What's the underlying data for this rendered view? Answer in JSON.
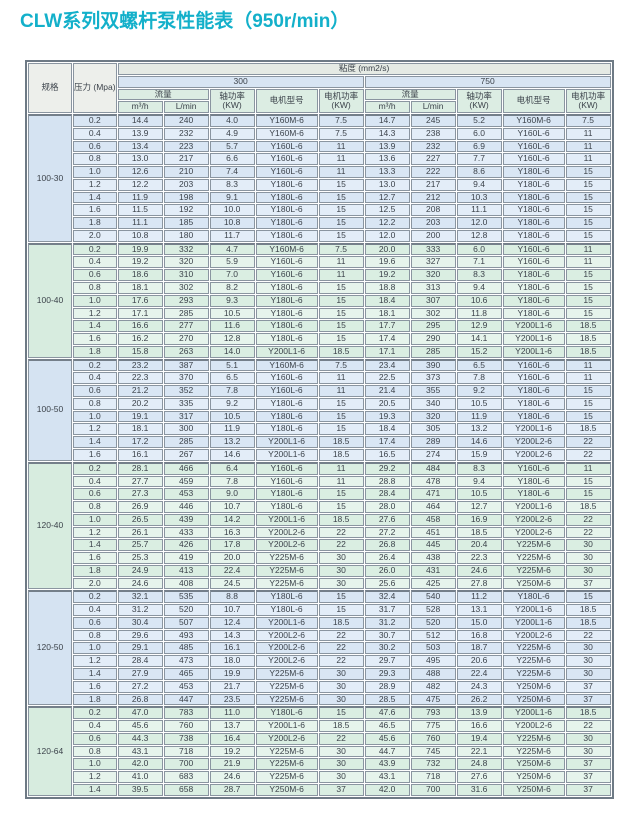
{
  "page_title": "CLW系列双螺杆泵性能表（950r/min）",
  "accent_color": "#13b0ca",
  "table": {
    "headers": {
      "spec": "规格",
      "pressure_line1": "压力",
      "pressure_line2": "(Mpa)",
      "viscosity": "粘度 (mm2/s)",
      "viscosity_300": "300",
      "viscosity_750": "750",
      "flow": "流量",
      "flow_m3h": "m³/h",
      "flow_lmin": "L/min",
      "shaft_power_line1": "轴功率",
      "shaft_power_line2": "(KW)",
      "motor_model": "电机型号",
      "motor_power_line1": "电机功率",
      "motor_power_line2": "(KW)"
    },
    "sections": [
      {
        "spec": "100-30",
        "tint": "blue",
        "rows": [
          {
            "pressure": "0.2",
            "v300": [
              "14.4",
              "240",
              "4.0",
              "Y160M-6",
              "7.5"
            ],
            "v750": [
              "14.7",
              "245",
              "5.2",
              "Y160M-6",
              "7.5"
            ]
          },
          {
            "pressure": "0.4",
            "v300": [
              "13.9",
              "232",
              "4.9",
              "Y160M-6",
              "7.5"
            ],
            "v750": [
              "14.3",
              "238",
              "6.0",
              "Y160L-6",
              "11"
            ]
          },
          {
            "pressure": "0.6",
            "v300": [
              "13.4",
              "223",
              "5.7",
              "Y160L-6",
              "11"
            ],
            "v750": [
              "13.9",
              "232",
              "6.9",
              "Y160L-6",
              "11"
            ]
          },
          {
            "pressure": "0.8",
            "v300": [
              "13.0",
              "217",
              "6.6",
              "Y160L-6",
              "11"
            ],
            "v750": [
              "13.6",
              "227",
              "7.7",
              "Y160L-6",
              "11"
            ]
          },
          {
            "pressure": "1.0",
            "v300": [
              "12.6",
              "210",
              "7.4",
              "Y160L-6",
              "11"
            ],
            "v750": [
              "13.3",
              "222",
              "8.6",
              "Y180L-6",
              "15"
            ]
          },
          {
            "pressure": "1.2",
            "v300": [
              "12.2",
              "203",
              "8.3",
              "Y180L-6",
              "15"
            ],
            "v750": [
              "13.0",
              "217",
              "9.4",
              "Y180L-6",
              "15"
            ]
          },
          {
            "pressure": "1.4",
            "v300": [
              "11.9",
              "198",
              "9.1",
              "Y180L-6",
              "15"
            ],
            "v750": [
              "12.7",
              "212",
              "10.3",
              "Y180L-6",
              "15"
            ]
          },
          {
            "pressure": "1.6",
            "v300": [
              "11.5",
              "192",
              "10.0",
              "Y180L-6",
              "15"
            ],
            "v750": [
              "12.5",
              "208",
              "11.1",
              "Y180L-6",
              "15"
            ]
          },
          {
            "pressure": "1.8",
            "v300": [
              "11.1",
              "185",
              "10.8",
              "Y180L-6",
              "15"
            ],
            "v750": [
              "12.2",
              "203",
              "12.0",
              "Y180L-6",
              "15"
            ]
          },
          {
            "pressure": "2.0",
            "v300": [
              "10.8",
              "180",
              "11.7",
              "Y180L-6",
              "15"
            ],
            "v750": [
              "12.0",
              "200",
              "12.8",
              "Y180L-6",
              "15"
            ]
          }
        ]
      },
      {
        "spec": "100-40",
        "tint": "green",
        "rows": [
          {
            "pressure": "0.2",
            "v300": [
              "19.9",
              "332",
              "4.7",
              "Y160M-6",
              "7.5"
            ],
            "v750": [
              "20.0",
              "333",
              "6.0",
              "Y160L-6",
              "11"
            ]
          },
          {
            "pressure": "0.4",
            "v300": [
              "19.2",
              "320",
              "5.9",
              "Y160L-6",
              "11"
            ],
            "v750": [
              "19.6",
              "327",
              "7.1",
              "Y160L-6",
              "11"
            ]
          },
          {
            "pressure": "0.6",
            "v300": [
              "18.6",
              "310",
              "7.0",
              "Y160L-6",
              "11"
            ],
            "v750": [
              "19.2",
              "320",
              "8.3",
              "Y180L-6",
              "15"
            ]
          },
          {
            "pressure": "0.8",
            "v300": [
              "18.1",
              "302",
              "8.2",
              "Y180L-6",
              "15"
            ],
            "v750": [
              "18.8",
              "313",
              "9.4",
              "Y180L-6",
              "15"
            ]
          },
          {
            "pressure": "1.0",
            "v300": [
              "17.6",
              "293",
              "9.3",
              "Y180L-6",
              "15"
            ],
            "v750": [
              "18.4",
              "307",
              "10.6",
              "Y180L-6",
              "15"
            ]
          },
          {
            "pressure": "1.2",
            "v300": [
              "17.1",
              "285",
              "10.5",
              "Y180L-6",
              "15"
            ],
            "v750": [
              "18.1",
              "302",
              "11.8",
              "Y180L-6",
              "15"
            ]
          },
          {
            "pressure": "1.4",
            "v300": [
              "16.6",
              "277",
              "11.6",
              "Y180L-6",
              "15"
            ],
            "v750": [
              "17.7",
              "295",
              "12.9",
              "Y200L1-6",
              "18.5"
            ]
          },
          {
            "pressure": "1.6",
            "v300": [
              "16.2",
              "270",
              "12.8",
              "Y180L-6",
              "15"
            ],
            "v750": [
              "17.4",
              "290",
              "14.1",
              "Y200L1-6",
              "18.5"
            ]
          },
          {
            "pressure": "1.8",
            "v300": [
              "15.8",
              "263",
              "14.0",
              "Y200L1-6",
              "18.5"
            ],
            "v750": [
              "17.1",
              "285",
              "15.2",
              "Y200L1-6",
              "18.5"
            ]
          }
        ]
      },
      {
        "spec": "100-50",
        "tint": "blue",
        "rows": [
          {
            "pressure": "0.2",
            "v300": [
              "23.2",
              "387",
              "5.1",
              "Y160M-6",
              "7.5"
            ],
            "v750": [
              "23.4",
              "390",
              "6.5",
              "Y160L-6",
              "11"
            ]
          },
          {
            "pressure": "0.4",
            "v300": [
              "22.3",
              "370",
              "6.5",
              "Y160L-6",
              "11"
            ],
            "v750": [
              "22.5",
              "373",
              "7.8",
              "Y160L-6",
              "11"
            ]
          },
          {
            "pressure": "0.6",
            "v300": [
              "21.2",
              "352",
              "7.8",
              "Y160L-6",
              "11"
            ],
            "v750": [
              "21.4",
              "355",
              "9.2",
              "Y180L-6",
              "15"
            ]
          },
          {
            "pressure": "0.8",
            "v300": [
              "20.2",
              "335",
              "9.2",
              "Y180L-6",
              "15"
            ],
            "v750": [
              "20.5",
              "340",
              "10.5",
              "Y180L-6",
              "15"
            ]
          },
          {
            "pressure": "1.0",
            "v300": [
              "19.1",
              "317",
              "10.5",
              "Y180L-6",
              "15"
            ],
            "v750": [
              "19.3",
              "320",
              "11.9",
              "Y180L-6",
              "15"
            ]
          },
          {
            "pressure": "1.2",
            "v300": [
              "18.1",
              "300",
              "11.9",
              "Y180L-6",
              "15"
            ],
            "v750": [
              "18.4",
              "305",
              "13.2",
              "Y200L1-6",
              "18.5"
            ]
          },
          {
            "pressure": "1.4",
            "v300": [
              "17.2",
              "285",
              "13.2",
              "Y200L1-6",
              "18.5"
            ],
            "v750": [
              "17.4",
              "289",
              "14.6",
              "Y200L2-6",
              "22"
            ]
          },
          {
            "pressure": "1.6",
            "v300": [
              "16.1",
              "267",
              "14.6",
              "Y200L1-6",
              "18.5"
            ],
            "v750": [
              "16.5",
              "274",
              "15.9",
              "Y200L2-6",
              "22"
            ]
          }
        ]
      },
      {
        "spec": "120-40",
        "tint": "green",
        "rows": [
          {
            "pressure": "0.2",
            "v300": [
              "28.1",
              "466",
              "6.4",
              "Y160L-6",
              "11"
            ],
            "v750": [
              "29.2",
              "484",
              "8.3",
              "Y160L-6",
              "11"
            ]
          },
          {
            "pressure": "0.4",
            "v300": [
              "27.7",
              "459",
              "7.8",
              "Y160L-6",
              "11"
            ],
            "v750": [
              "28.8",
              "478",
              "9.4",
              "Y180L-6",
              "15"
            ]
          },
          {
            "pressure": "0.6",
            "v300": [
              "27.3",
              "453",
              "9.0",
              "Y180L-6",
              "15"
            ],
            "v750": [
              "28.4",
              "471",
              "10.5",
              "Y180L-6",
              "15"
            ]
          },
          {
            "pressure": "0.8",
            "v300": [
              "26.9",
              "446",
              "10.7",
              "Y180L-6",
              "15"
            ],
            "v750": [
              "28.0",
              "464",
              "12.7",
              "Y200L1-6",
              "18.5"
            ]
          },
          {
            "pressure": "1.0",
            "v300": [
              "26.5",
              "439",
              "14.2",
              "Y200L1-6",
              "18.5"
            ],
            "v750": [
              "27.6",
              "458",
              "16.9",
              "Y200L2-6",
              "22"
            ]
          },
          {
            "pressure": "1.2",
            "v300": [
              "26.1",
              "433",
              "16.3",
              "Y200L2-6",
              "22"
            ],
            "v750": [
              "27.2",
              "451",
              "18.5",
              "Y200L2-6",
              "22"
            ]
          },
          {
            "pressure": "1.4",
            "v300": [
              "25.7",
              "426",
              "17.8",
              "Y200L2-6",
              "22"
            ],
            "v750": [
              "26.8",
              "445",
              "20.4",
              "Y225M-6",
              "30"
            ]
          },
          {
            "pressure": "1.6",
            "v300": [
              "25.3",
              "419",
              "20.0",
              "Y225M-6",
              "30"
            ],
            "v750": [
              "26.4",
              "438",
              "22.3",
              "Y225M-6",
              "30"
            ]
          },
          {
            "pressure": "1.8",
            "v300": [
              "24.9",
              "413",
              "22.4",
              "Y225M-6",
              "30"
            ],
            "v750": [
              "26.0",
              "431",
              "24.6",
              "Y225M-6",
              "30"
            ]
          },
          {
            "pressure": "2.0",
            "v300": [
              "24.6",
              "408",
              "24.5",
              "Y225M-6",
              "30"
            ],
            "v750": [
              "25.6",
              "425",
              "27.8",
              "Y250M-6",
              "37"
            ]
          }
        ]
      },
      {
        "spec": "120-50",
        "tint": "blue",
        "rows": [
          {
            "pressure": "0.2",
            "v300": [
              "32.1",
              "535",
              "8.8",
              "Y180L-6",
              "15"
            ],
            "v750": [
              "32.4",
              "540",
              "11.2",
              "Y180L-6",
              "15"
            ]
          },
          {
            "pressure": "0.4",
            "v300": [
              "31.2",
              "520",
              "10.7",
              "Y180L-6",
              "15"
            ],
            "v750": [
              "31.7",
              "528",
              "13.1",
              "Y200L1-6",
              "18.5"
            ]
          },
          {
            "pressure": "0.6",
            "v300": [
              "30.4",
              "507",
              "12.4",
              "Y200L1-6",
              "18.5"
            ],
            "v750": [
              "31.2",
              "520",
              "15.0",
              "Y200L1-6",
              "18.5"
            ]
          },
          {
            "pressure": "0.8",
            "v300": [
              "29.6",
              "493",
              "14.3",
              "Y200L2-6",
              "22"
            ],
            "v750": [
              "30.7",
              "512",
              "16.8",
              "Y200L2-6",
              "22"
            ]
          },
          {
            "pressure": "1.0",
            "v300": [
              "29.1",
              "485",
              "16.1",
              "Y200L2-6",
              "22"
            ],
            "v750": [
              "30.2",
              "503",
              "18.7",
              "Y225M-6",
              "30"
            ]
          },
          {
            "pressure": "1.2",
            "v300": [
              "28.4",
              "473",
              "18.0",
              "Y200L2-6",
              "22"
            ],
            "v750": [
              "29.7",
              "495",
              "20.6",
              "Y225M-6",
              "30"
            ]
          },
          {
            "pressure": "1.4",
            "v300": [
              "27.9",
              "465",
              "19.9",
              "Y225M-6",
              "30"
            ],
            "v750": [
              "29.3",
              "488",
              "22.4",
              "Y225M-6",
              "30"
            ]
          },
          {
            "pressure": "1.6",
            "v300": [
              "27.2",
              "453",
              "21.7",
              "Y225M-6",
              "30"
            ],
            "v750": [
              "28.9",
              "482",
              "24.3",
              "Y250M-6",
              "37"
            ]
          },
          {
            "pressure": "1.8",
            "v300": [
              "26.8",
              "447",
              "23.5",
              "Y225M-6",
              "30"
            ],
            "v750": [
              "28.5",
              "475",
              "26.2",
              "Y250M-6",
              "37"
            ]
          }
        ]
      },
      {
        "spec": "120-64",
        "tint": "green",
        "rows": [
          {
            "pressure": "0.2",
            "v300": [
              "47.0",
              "783",
              "11.0",
              "Y180L-6",
              "15"
            ],
            "v750": [
              "47.6",
              "793",
              "13.9",
              "Y200L1-6",
              "18.5"
            ]
          },
          {
            "pressure": "0.4",
            "v300": [
              "45.6",
              "760",
              "13.7",
              "Y200L1-6",
              "18.5"
            ],
            "v750": [
              "46.5",
              "775",
              "16.6",
              "Y200L2-6",
              "22"
            ]
          },
          {
            "pressure": "0.6",
            "v300": [
              "44.3",
              "738",
              "16.4",
              "Y200L2-6",
              "22"
            ],
            "v750": [
              "45.6",
              "760",
              "19.4",
              "Y225M-6",
              "30"
            ]
          },
          {
            "pressure": "0.8",
            "v300": [
              "43.1",
              "718",
              "19.2",
              "Y225M-6",
              "30"
            ],
            "v750": [
              "44.7",
              "745",
              "22.1",
              "Y225M-6",
              "30"
            ]
          },
          {
            "pressure": "1.0",
            "v300": [
              "42.0",
              "700",
              "21.9",
              "Y225M-6",
              "30"
            ],
            "v750": [
              "43.9",
              "732",
              "24.8",
              "Y250M-6",
              "37"
            ]
          },
          {
            "pressure": "1.2",
            "v300": [
              "41.0",
              "683",
              "24.6",
              "Y225M-6",
              "30"
            ],
            "v750": [
              "43.1",
              "718",
              "27.6",
              "Y250M-6",
              "37"
            ]
          },
          {
            "pressure": "1.4",
            "v300": [
              "39.5",
              "658",
              "28.7",
              "Y250M-6",
              "37"
            ],
            "v750": [
              "42.0",
              "700",
              "31.6",
              "Y250M-6",
              "37"
            ]
          }
        ]
      }
    ]
  }
}
